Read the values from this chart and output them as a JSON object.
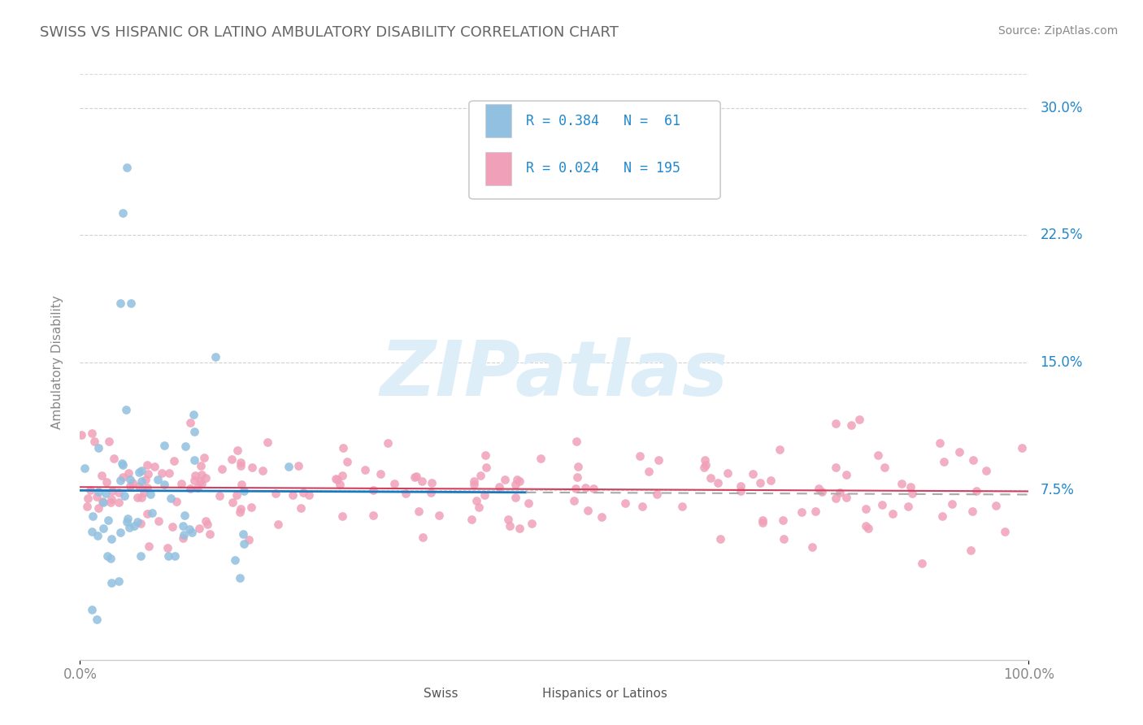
{
  "title": "SWISS VS HISPANIC OR LATINO AMBULATORY DISABILITY CORRELATION CHART",
  "source_text": "Source: ZipAtlas.com",
  "ylabel": "Ambulatory Disability",
  "xlim": [
    0.0,
    1.0
  ],
  "ylim": [
    -0.025,
    0.325
  ],
  "ytick_labels": [
    "7.5%",
    "15.0%",
    "22.5%",
    "30.0%"
  ],
  "ytick_positions": [
    0.075,
    0.15,
    0.225,
    0.3
  ],
  "swiss_R": 0.384,
  "swiss_N": 61,
  "hispanic_R": 0.024,
  "hispanic_N": 195,
  "blue_scatter_color": "#92c0e0",
  "blue_line_color": "#1a7abf",
  "pink_scatter_color": "#f0a0b8",
  "red_line_color": "#d04060",
  "gray_dash_color": "#aaaaaa",
  "legend_text_color": "#2288cc",
  "title_color": "#666666",
  "source_color": "#888888",
  "grid_color": "#cccccc",
  "bg_color": "#ffffff",
  "axis_label_color": "#888888",
  "watermark_text": "ZIPatlas",
  "watermark_color": "#ddeef8",
  "swiss_seed": 42,
  "hispanic_seed": 7,
  "bottom_legend_color": "#555555",
  "legend_box_edge": "#cccccc",
  "legend_box_bg": "#ffffff"
}
